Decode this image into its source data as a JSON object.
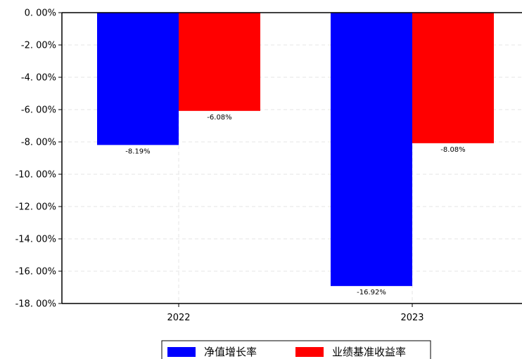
{
  "chart_data": {
    "type": "bar",
    "categories": [
      "2022",
      "2023"
    ],
    "series": [
      {
        "name": "净值增长率",
        "values": [
          -8.19,
          -16.92
        ],
        "labels": [
          "-8.19%",
          "-16.92%"
        ],
        "color": "#0000ff"
      },
      {
        "name": "业绩基准收益率",
        "values": [
          -6.08,
          -8.08
        ],
        "labels": [
          "-6.08%",
          "-8.08%"
        ],
        "color": "#ff0000"
      }
    ],
    "ylim": [
      -18,
      0
    ],
    "yticks": [
      0,
      -2,
      -4,
      -6,
      -8,
      -10,
      -12,
      -14,
      -16,
      -18
    ],
    "ytick_labels": [
      "0. 00%",
      "-2. 00%",
      "-4. 00%",
      "-6. 00%",
      "-8. 00%",
      "-10. 00%",
      "-12. 00%",
      "-14. 00%",
      "-16. 00%",
      "-18. 00%"
    ],
    "grid": true,
    "legend": "bottom-center"
  }
}
